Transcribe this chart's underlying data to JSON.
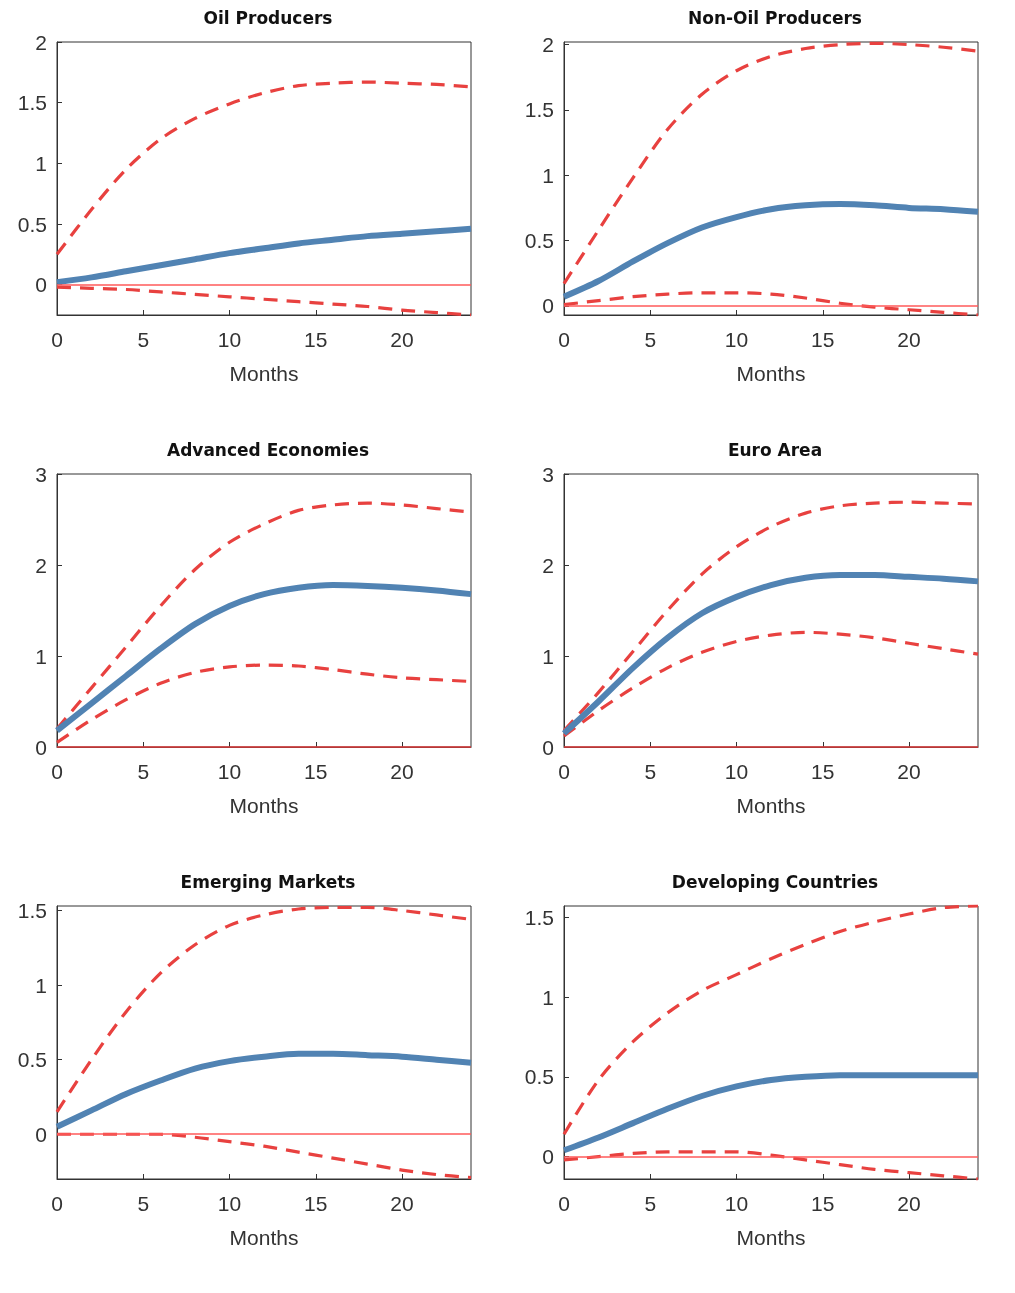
{
  "chart_data": [
    {
      "type": "line",
      "title": "Oil Producers",
      "xlabel": "Months",
      "x": [
        0,
        2,
        4,
        6,
        8,
        10,
        12,
        14,
        16,
        18,
        20,
        22,
        24
      ],
      "xlim": [
        0,
        24
      ],
      "xticks": [
        0,
        5,
        10,
        15,
        20
      ],
      "ylim": [
        -0.25,
        2
      ],
      "yticks": [
        0,
        0.5,
        1,
        1.5,
        2
      ],
      "grid": false,
      "marker": "none",
      "series": [
        {
          "color": "#e8413f",
          "line_style": "dashed",
          "values": [
            0.25,
            0.62,
            0.95,
            1.2,
            1.37,
            1.49,
            1.58,
            1.64,
            1.66,
            1.67,
            1.66,
            1.65,
            1.63
          ]
        },
        {
          "color": "#e8413f",
          "line_style": "dashed",
          "values": [
            -0.02,
            -0.03,
            -0.04,
            -0.06,
            -0.08,
            -0.1,
            -0.12,
            -0.14,
            -0.16,
            -0.18,
            -0.21,
            -0.23,
            -0.25
          ]
        },
        {
          "color": "#5183b3",
          "line_style": "solid",
          "values": [
            0.02,
            0.06,
            0.11,
            0.16,
            0.21,
            0.26,
            0.3,
            0.34,
            0.37,
            0.4,
            0.42,
            0.44,
            0.46
          ]
        }
      ],
      "ref_lines": [
        {
          "axis": "y",
          "value": 0,
          "color": "#ff5a5a"
        }
      ]
    },
    {
      "type": "line",
      "title": "Non-Oil Producers",
      "xlabel": "Months",
      "x": [
        0,
        2,
        4,
        6,
        8,
        10,
        12,
        14,
        16,
        18,
        20,
        22,
        24
      ],
      "xlim": [
        0,
        24
      ],
      "xticks": [
        0,
        5,
        10,
        15,
        20
      ],
      "ylim": [
        -0.07,
        2.02
      ],
      "yticks": [
        0,
        0.5,
        1,
        1.5,
        2
      ],
      "grid": false,
      "marker": "none",
      "series": [
        {
          "color": "#e8413f",
          "line_style": "dashed",
          "values": [
            0.17,
            0.58,
            0.98,
            1.35,
            1.62,
            1.8,
            1.91,
            1.97,
            2,
            2.01,
            2,
            1.98,
            1.95
          ]
        },
        {
          "color": "#e8413f",
          "line_style": "dashed",
          "values": [
            0.01,
            0.04,
            0.07,
            0.09,
            0.1,
            0.1,
            0.09,
            0.06,
            0.02,
            -0.01,
            -0.03,
            -0.05,
            -0.07
          ]
        },
        {
          "color": "#5183b3",
          "line_style": "solid",
          "values": [
            0.07,
            0.19,
            0.34,
            0.48,
            0.6,
            0.68,
            0.74,
            0.77,
            0.78,
            0.77,
            0.75,
            0.74,
            0.72
          ]
        }
      ],
      "ref_lines": [
        {
          "axis": "y",
          "value": 0,
          "color": "#ff5a5a"
        }
      ]
    },
    {
      "type": "line",
      "title": "Advanced Economies",
      "xlabel": "Months",
      "x": [
        0,
        2,
        4,
        6,
        8,
        10,
        12,
        14,
        16,
        18,
        20,
        22,
        24
      ],
      "xlim": [
        0,
        24
      ],
      "xticks": [
        0,
        5,
        10,
        15,
        20
      ],
      "ylim": [
        0,
        3
      ],
      "yticks": [
        0,
        1,
        2,
        3
      ],
      "grid": false,
      "marker": "none",
      "series": [
        {
          "color": "#e8413f",
          "line_style": "dashed",
          "values": [
            0.2,
            0.65,
            1.1,
            1.55,
            1.95,
            2.25,
            2.45,
            2.6,
            2.66,
            2.68,
            2.66,
            2.62,
            2.58
          ]
        },
        {
          "color": "#e8413f",
          "line_style": "dashed",
          "values": [
            0.05,
            0.3,
            0.52,
            0.7,
            0.82,
            0.88,
            0.9,
            0.89,
            0.85,
            0.8,
            0.76,
            0.74,
            0.72
          ]
        },
        {
          "color": "#5183b3",
          "line_style": "solid",
          "values": [
            0.18,
            0.48,
            0.78,
            1.08,
            1.35,
            1.55,
            1.68,
            1.75,
            1.78,
            1.77,
            1.75,
            1.72,
            1.68
          ]
        }
      ],
      "ref_lines": [
        {
          "axis": "y",
          "value": 0,
          "color": "#e03c3c"
        }
      ]
    },
    {
      "type": "line",
      "title": "Euro Area",
      "xlabel": "Months",
      "x": [
        0,
        2,
        4,
        6,
        8,
        10,
        12,
        14,
        16,
        18,
        20,
        22,
        24
      ],
      "xlim": [
        0,
        24
      ],
      "xticks": [
        0,
        5,
        10,
        15,
        20
      ],
      "ylim": [
        0,
        3
      ],
      "yticks": [
        0,
        1,
        2,
        3
      ],
      "grid": false,
      "marker": "none",
      "series": [
        {
          "color": "#e8413f",
          "line_style": "dashed",
          "values": [
            0.18,
            0.6,
            1.05,
            1.5,
            1.9,
            2.2,
            2.42,
            2.57,
            2.65,
            2.68,
            2.69,
            2.68,
            2.67
          ]
        },
        {
          "color": "#e8413f",
          "line_style": "dashed",
          "values": [
            0.12,
            0.4,
            0.65,
            0.87,
            1.04,
            1.16,
            1.23,
            1.26,
            1.24,
            1.2,
            1.14,
            1.08,
            1.02
          ]
        },
        {
          "color": "#5183b3",
          "line_style": "solid",
          "values": [
            0.15,
            0.5,
            0.87,
            1.2,
            1.47,
            1.65,
            1.78,
            1.86,
            1.89,
            1.89,
            1.87,
            1.85,
            1.82
          ]
        }
      ],
      "ref_lines": [
        {
          "axis": "y",
          "value": 0,
          "color": "#e03c3c"
        }
      ]
    },
    {
      "type": "line",
      "title": "Emerging Markets",
      "xlabel": "Months",
      "x": [
        0,
        2,
        4,
        6,
        8,
        10,
        12,
        14,
        16,
        18,
        20,
        22,
        24
      ],
      "xlim": [
        0,
        24
      ],
      "xticks": [
        0,
        5,
        10,
        15,
        20
      ],
      "ylim": [
        -0.3,
        1.53
      ],
      "yticks": [
        0,
        0.5,
        1,
        1.5
      ],
      "grid": false,
      "marker": "none",
      "series": [
        {
          "color": "#e8413f",
          "line_style": "dashed",
          "values": [
            0.15,
            0.5,
            0.82,
            1.08,
            1.27,
            1.4,
            1.47,
            1.51,
            1.52,
            1.52,
            1.5,
            1.47,
            1.44
          ]
        },
        {
          "color": "#e8413f",
          "line_style": "dashed",
          "values": [
            0,
            0,
            0,
            0,
            -0.02,
            -0.05,
            -0.08,
            -0.12,
            -0.16,
            -0.2,
            -0.24,
            -0.27,
            -0.29
          ]
        },
        {
          "color": "#5183b3",
          "line_style": "solid",
          "values": [
            0.05,
            0.16,
            0.27,
            0.36,
            0.44,
            0.49,
            0.52,
            0.54,
            0.54,
            0.53,
            0.52,
            0.5,
            0.48
          ]
        }
      ],
      "ref_lines": [
        {
          "axis": "y",
          "value": 0,
          "color": "#ff5a5a"
        }
      ]
    },
    {
      "type": "line",
      "title": "Developing Countries",
      "xlabel": "Months",
      "x": [
        0,
        2,
        4,
        6,
        8,
        10,
        12,
        14,
        16,
        18,
        20,
        22,
        24
      ],
      "xlim": [
        0,
        24
      ],
      "xticks": [
        0,
        5,
        10,
        15,
        20
      ],
      "ylim": [
        -0.14,
        1.57
      ],
      "yticks": [
        0,
        0.5,
        1,
        1.5
      ],
      "grid": false,
      "marker": "none",
      "series": [
        {
          "color": "#e8413f",
          "line_style": "dashed",
          "values": [
            0.14,
            0.48,
            0.72,
            0.9,
            1.04,
            1.14,
            1.24,
            1.33,
            1.41,
            1.47,
            1.52,
            1.56,
            1.57
          ]
        },
        {
          "color": "#e8413f",
          "line_style": "dashed",
          "values": [
            -0.02,
            0,
            0.02,
            0.03,
            0.03,
            0.03,
            0.01,
            -0.02,
            -0.05,
            -0.08,
            -0.1,
            -0.12,
            -0.14
          ]
        },
        {
          "color": "#5183b3",
          "line_style": "solid",
          "values": [
            0.04,
            0.12,
            0.21,
            0.3,
            0.38,
            0.44,
            0.48,
            0.5,
            0.51,
            0.51,
            0.51,
            0.51,
            0.51
          ]
        }
      ],
      "ref_lines": [
        {
          "axis": "y",
          "value": 0,
          "color": "#ff5a5a"
        }
      ]
    }
  ]
}
